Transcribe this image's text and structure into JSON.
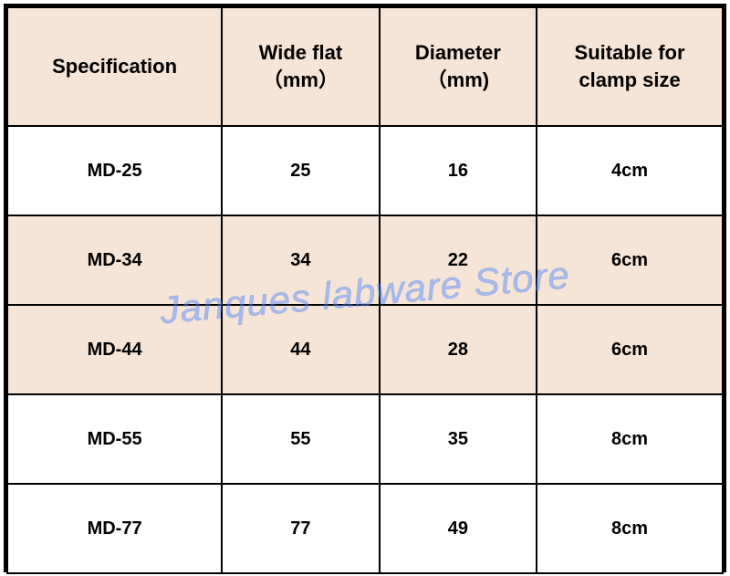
{
  "table": {
    "columns": [
      {
        "title": "Specification",
        "sub": ""
      },
      {
        "title": "Wide flat",
        "sub": "（mm）"
      },
      {
        "title": "Diameter",
        "sub": "（mm)"
      },
      {
        "title": "Suitable for",
        "sub": "clamp size"
      }
    ],
    "rows": [
      [
        "MD-25",
        "25",
        "16",
        "4cm"
      ],
      [
        "MD-34",
        "34",
        "22",
        "6cm"
      ],
      [
        "MD-44",
        "44",
        "28",
        "6cm"
      ],
      [
        "MD-55",
        "55",
        "35",
        "8cm"
      ],
      [
        "MD-77",
        "77",
        "49",
        "8cm"
      ]
    ],
    "header_bg": "#f6e4d6",
    "row_alt_bg": "#f6e4d6",
    "row_plain_bg": "#ffffff",
    "border_color": "#000000",
    "header_fontsize": 22,
    "cell_fontsize": 20,
    "col_widths_pct": [
      30,
      22,
      22,
      26
    ]
  },
  "watermark": {
    "text": "Janques labware Store",
    "color": "rgba(77,136,255,0.45)",
    "fontsize": 42,
    "rotation_deg": -5
  }
}
